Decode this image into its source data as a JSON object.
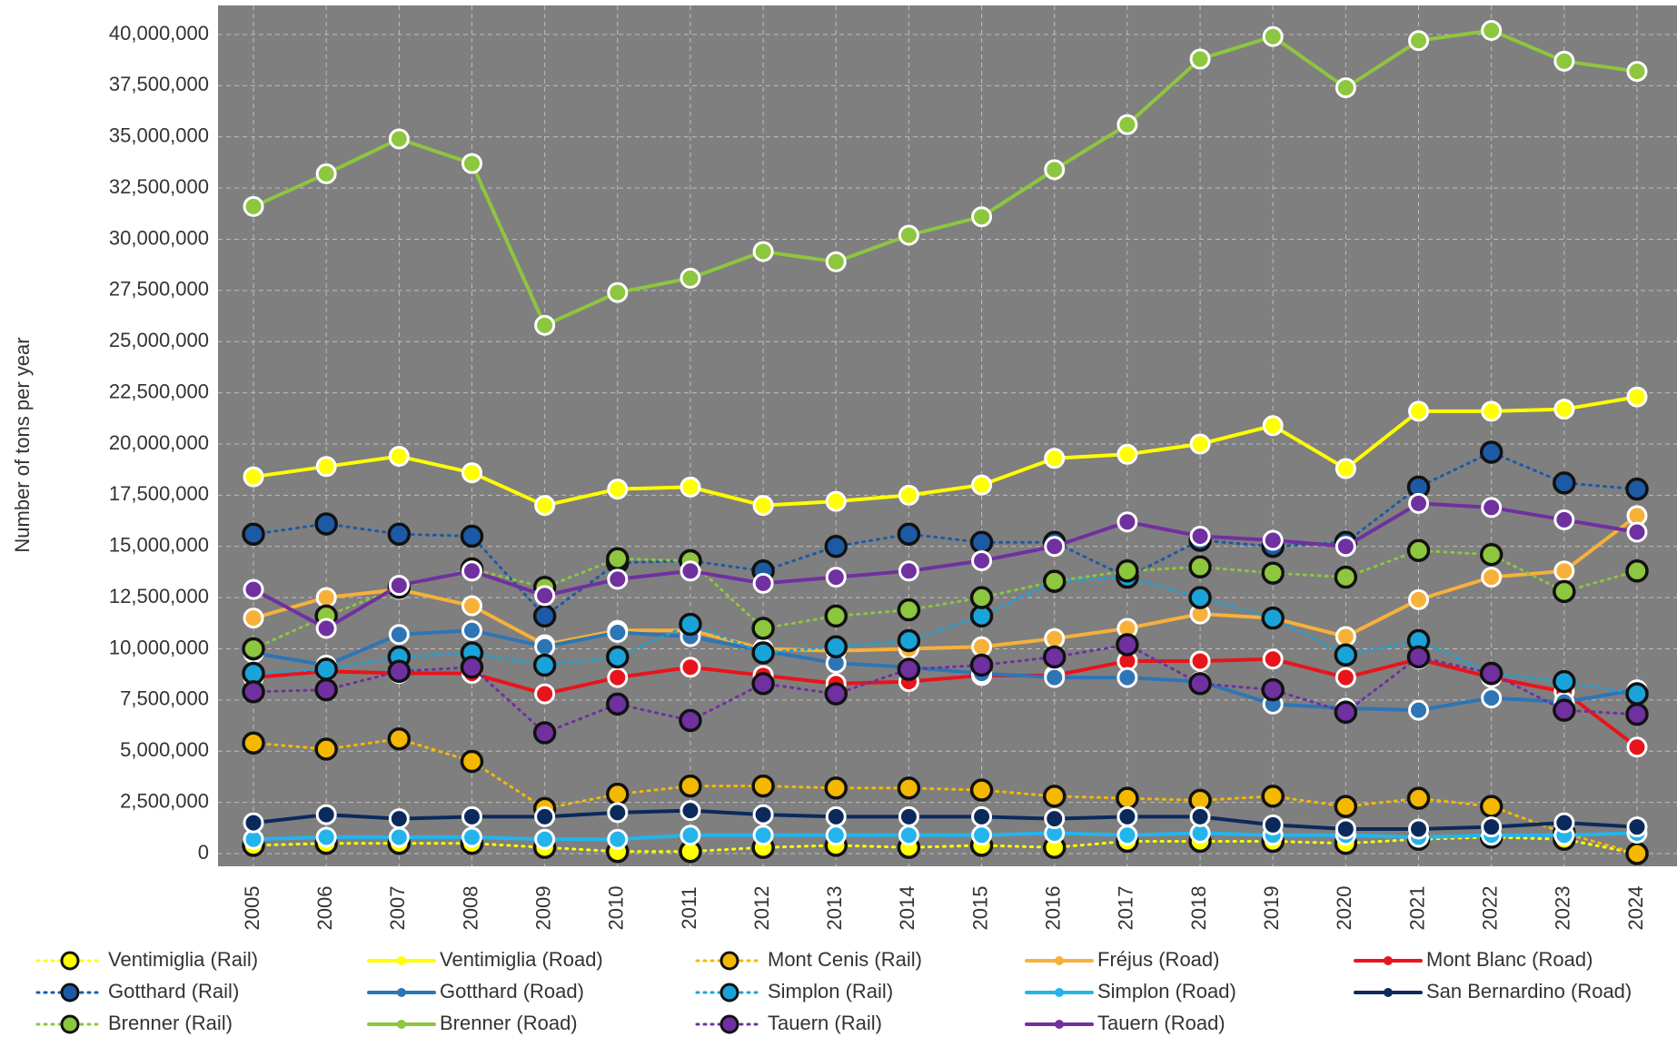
{
  "chart_data": {
    "type": "line",
    "y_label": "Number of tons per year",
    "categories": [
      "2005",
      "2006",
      "2007",
      "2008",
      "2009",
      "2010",
      "2011",
      "2012",
      "2013",
      "2014",
      "2015",
      "2016",
      "2017",
      "2018",
      "2019",
      "2020",
      "2021",
      "2022",
      "2023",
      "2024"
    ],
    "ylim": [
      0,
      40000000
    ],
    "yticks": [
      0,
      {
        "value": 2500000,
        "label": "2,500,000"
      },
      {
        "value": 5000000,
        "label": "5,000,000"
      },
      {
        "value": 7500000,
        "label": "7,500,000"
      },
      {
        "value": 10000000,
        "label": "10,000,000"
      },
      {
        "value": 12500000,
        "label": "12,500,000"
      },
      {
        "value": 15000000,
        "label": "15,000,000"
      },
      {
        "value": 17500000,
        "label": "17,500,000"
      },
      {
        "value": 20000000,
        "label": "20,000,000"
      },
      {
        "value": 22500000,
        "label": "22,500,000"
      },
      {
        "value": 25000000,
        "label": "25,000,000"
      },
      {
        "value": 27500000,
        "label": "27,500,000"
      },
      {
        "value": 30000000,
        "label": "30,000,000"
      },
      {
        "value": 32500000,
        "label": "32,500,000"
      },
      {
        "value": 35000000,
        "label": "35,000,000"
      },
      {
        "value": 37500000,
        "label": "37,500,000"
      },
      {
        "value": 40000000,
        "label": "40,000,000"
      }
    ],
    "grid": true,
    "legend": "bottom",
    "series": [
      {
        "name": "Ventimiglia (Rail)",
        "color": "#ffff00",
        "line": "dotted",
        "values": [
          400000,
          500000,
          500000,
          500000,
          300000,
          100000,
          100000,
          300000,
          400000,
          300000,
          400000,
          300000,
          600000,
          600000,
          600000,
          500000,
          700000,
          800000,
          700000,
          0
        ]
      },
      {
        "name": "Ventimiglia (Road)",
        "color": "#ffff00",
        "line": "solid",
        "values": [
          18400000,
          18900000,
          19400000,
          18600000,
          17000000,
          17800000,
          17900000,
          17000000,
          17200000,
          17500000,
          18000000,
          19300000,
          19500000,
          20000000,
          20900000,
          18800000,
          21600000,
          21600000,
          21700000,
          22300000
        ]
      },
      {
        "name": "Mont Cenis (Rail)",
        "color": "#f5b800",
        "line": "dotted",
        "values": [
          5400000,
          5100000,
          5600000,
          4500000,
          2200000,
          2900000,
          3300000,
          3300000,
          3200000,
          3200000,
          3100000,
          2800000,
          2700000,
          2600000,
          2800000,
          2300000,
          2700000,
          2300000,
          1000000,
          0
        ]
      },
      {
        "name": "Fréjus (Road)",
        "color": "#f7b13a",
        "line": "solid",
        "values": [
          11500000,
          12500000,
          12900000,
          12100000,
          10200000,
          10900000,
          10900000,
          10000000,
          9900000,
          10000000,
          10100000,
          10500000,
          11000000,
          11700000,
          11500000,
          10600000,
          12400000,
          13500000,
          13800000,
          16500000
        ]
      },
      {
        "name": "Mont Blanc (Road)",
        "color": "#e8141b",
        "line": "solid",
        "values": [
          8600000,
          8900000,
          8800000,
          8800000,
          7800000,
          8600000,
          9100000,
          8700000,
          8300000,
          8400000,
          8700000,
          8700000,
          9400000,
          9400000,
          9500000,
          8600000,
          9500000,
          8600000,
          7900000,
          5200000
        ]
      },
      {
        "name": "Gotthard (Rail)",
        "color": "#1c5aa6",
        "line": "dotted",
        "values": [
          15600000,
          16100000,
          15600000,
          15500000,
          11600000,
          14200000,
          14300000,
          13800000,
          15000000,
          15600000,
          15200000,
          15200000,
          13500000,
          15300000,
          15000000,
          15200000,
          17900000,
          19600000,
          18100000,
          17800000
        ]
      },
      {
        "name": "Gotthard (Road)",
        "color": "#2e75b6",
        "line": "solid",
        "values": [
          9800000,
          9200000,
          10700000,
          10900000,
          10100000,
          10800000,
          10600000,
          9900000,
          9300000,
          9100000,
          8800000,
          8600000,
          8600000,
          8400000,
          7300000,
          7100000,
          7000000,
          7600000,
          7400000,
          8000000
        ]
      },
      {
        "name": "Simplon (Rail)",
        "color": "#1aa3d9",
        "line": "dotted",
        "values": [
          8800000,
          9000000,
          9600000,
          9800000,
          9200000,
          9600000,
          11200000,
          9800000,
          10100000,
          10400000,
          11600000,
          13300000,
          13500000,
          12500000,
          11500000,
          9700000,
          10400000,
          8800000,
          8400000,
          7800000
        ]
      },
      {
        "name": "Simplon (Road)",
        "color": "#24b4ec",
        "line": "solid",
        "values": [
          700000,
          800000,
          800000,
          800000,
          700000,
          700000,
          900000,
          900000,
          900000,
          900000,
          900000,
          1000000,
          900000,
          1000000,
          900000,
          900000,
          800000,
          900000,
          900000,
          1000000
        ]
      },
      {
        "name": "San Bernardino (Road)",
        "color": "#0b2a5b",
        "line": "solid",
        "values": [
          1500000,
          1900000,
          1700000,
          1800000,
          1800000,
          2000000,
          2100000,
          1900000,
          1800000,
          1800000,
          1800000,
          1700000,
          1800000,
          1800000,
          1400000,
          1200000,
          1200000,
          1300000,
          1500000,
          1300000
        ]
      },
      {
        "name": "Brenner (Rail)",
        "color": "#8dc63f",
        "line": "dotted",
        "values": [
          10000000,
          11600000,
          13000000,
          13900000,
          13000000,
          14400000,
          14300000,
          11000000,
          11600000,
          11900000,
          12500000,
          13300000,
          13800000,
          14000000,
          13700000,
          13500000,
          14800000,
          14600000,
          12800000,
          13800000
        ]
      },
      {
        "name": "Brenner (Road)",
        "color": "#8dc63f",
        "line": "solid",
        "values": [
          31600000,
          33200000,
          34900000,
          33700000,
          25800000,
          27400000,
          28100000,
          29400000,
          28900000,
          30200000,
          31100000,
          33400000,
          35600000,
          38800000,
          39900000,
          37400000,
          39700000,
          40200000,
          38700000,
          38200000
        ]
      },
      {
        "name": "Tauern (Rail)",
        "color": "#7030a0",
        "line": "dotted",
        "values": [
          7900000,
          8000000,
          8900000,
          9100000,
          5900000,
          7300000,
          6500000,
          8300000,
          7800000,
          9000000,
          9200000,
          9600000,
          10200000,
          8300000,
          8000000,
          6900000,
          9600000,
          8800000,
          7000000,
          6800000
        ]
      },
      {
        "name": "Tauern (Road)",
        "color": "#7030a0",
        "line": "solid",
        "values": [
          12900000,
          11000000,
          13100000,
          13800000,
          12600000,
          13400000,
          13800000,
          13200000,
          13500000,
          13800000,
          14300000,
          15000000,
          16200000,
          15500000,
          15300000,
          15000000,
          17100000,
          16900000,
          16300000,
          15700000
        ]
      }
    ]
  }
}
